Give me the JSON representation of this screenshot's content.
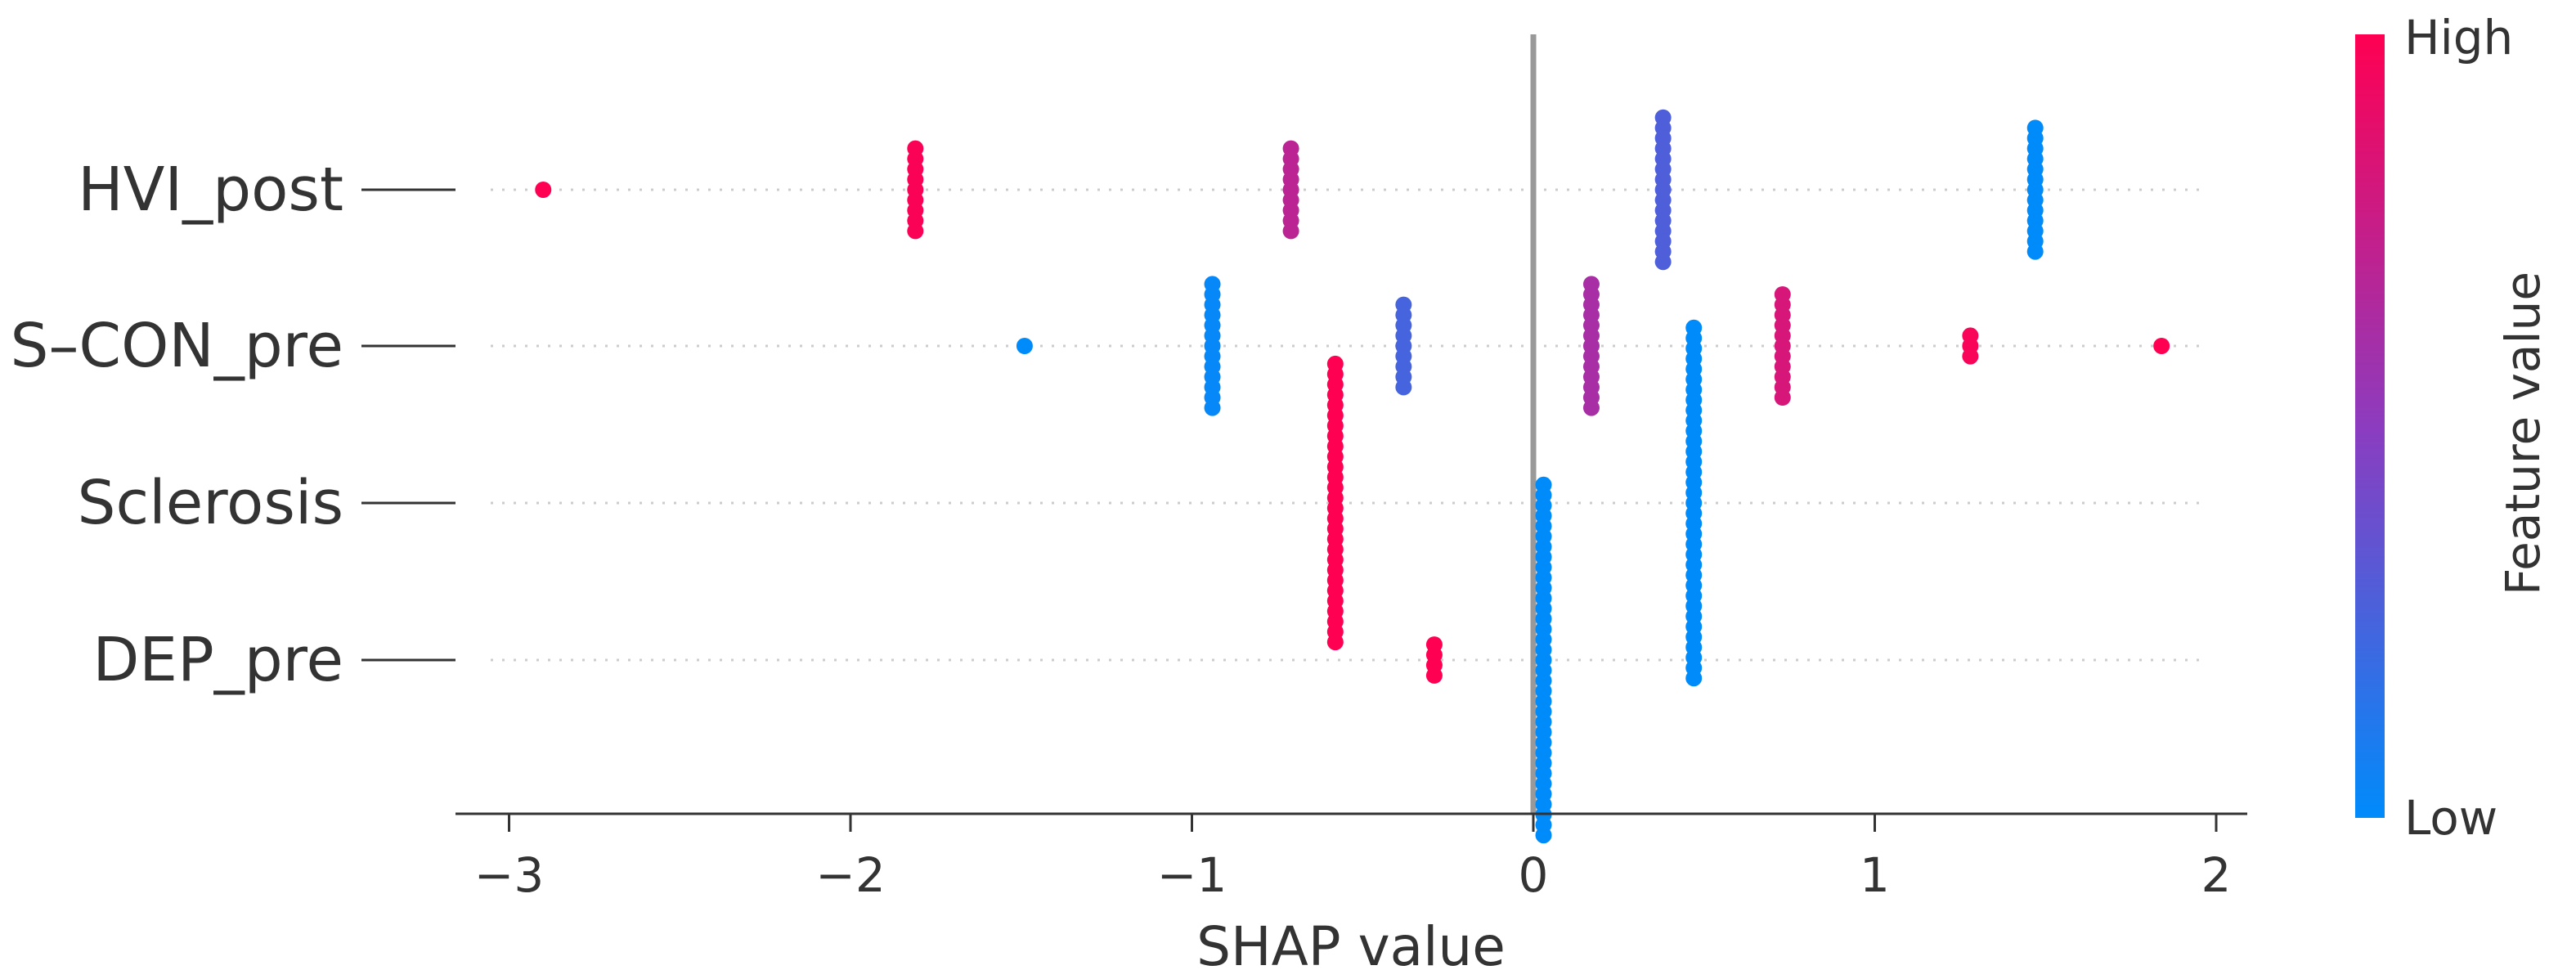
{
  "chart_data": {
    "type": "scatter",
    "subtype": "shap-beeswarm",
    "xlabel": "SHAP value",
    "xlim": [
      -3.15,
      2.07
    ],
    "xticks": [
      -3,
      -2,
      -1,
      0,
      1,
      2
    ],
    "xtick_labels": [
      "−3",
      "−2",
      "−1",
      "0",
      "1",
      "2"
    ],
    "features": [
      "HVI_post",
      "S–CON_pre",
      "Sclerosis",
      "DEP_pre"
    ],
    "colorbar": {
      "label": "Feature value",
      "high_label": "High",
      "low_label": "Low",
      "low_color": "#008bfb",
      "high_color": "#ff0052",
      "mid_color": "#8c3cbf"
    },
    "points": [
      {
        "feature": "HVI_post",
        "clusters": [
          {
            "x": -2.9,
            "count": 1,
            "value": 1.0
          },
          {
            "x": -1.81,
            "count": 9,
            "value": 0.98
          },
          {
            "x": -0.71,
            "count": 9,
            "value": 0.7
          },
          {
            "x": 0.38,
            "count": 15,
            "value": 0.28
          },
          {
            "x": 1.47,
            "count": 13,
            "value": 0.0
          }
        ]
      },
      {
        "feature": "S–CON_pre",
        "clusters": [
          {
            "x": -1.49,
            "count": 1,
            "value": 0.0
          },
          {
            "x": -0.94,
            "count": 13,
            "value": 0.02
          },
          {
            "x": -0.38,
            "count": 9,
            "value": 0.25
          },
          {
            "x": 0.17,
            "count": 13,
            "value": 0.62
          },
          {
            "x": 0.73,
            "count": 11,
            "value": 0.82
          },
          {
            "x": 1.28,
            "count": 3,
            "value": 0.97
          },
          {
            "x": 1.84,
            "count": 1,
            "value": 1.0
          }
        ]
      },
      {
        "feature": "Sclerosis",
        "clusters": [
          {
            "x": -0.58,
            "count": 28,
            "value": 1.0
          },
          {
            "x": 0.47,
            "count": 35,
            "value": 0.0
          }
        ]
      },
      {
        "feature": "DEP_pre",
        "clusters": [
          {
            "x": -0.29,
            "count": 4,
            "value": 1.0
          },
          {
            "x": 0.03,
            "count": 35,
            "value": 0.0
          }
        ]
      }
    ]
  }
}
